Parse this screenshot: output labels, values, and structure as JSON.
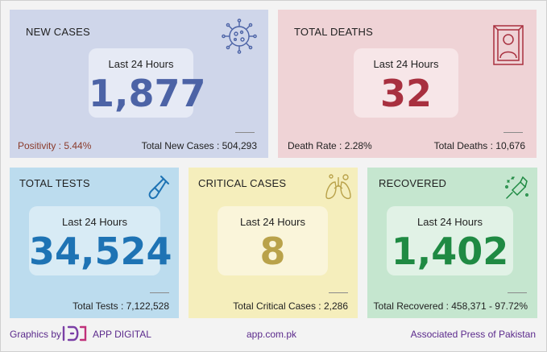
{
  "new_cases": {
    "title": "NEW CASES",
    "period_label": "Last 24 Hours",
    "value": "1,877",
    "left_stat": "Positivity : 5.44%",
    "right_stat": "Total New Cases : 504,293",
    "icon": "virus-icon",
    "color": "#4c63a6"
  },
  "total_deaths": {
    "title": "TOTAL DEATHS",
    "period_label": "Last 24 Hours",
    "value": "32",
    "left_stat": "Death Rate : 2.28%",
    "right_stat": "Total Deaths : 10,676",
    "icon": "memorial-portrait-icon",
    "color": "#a8303f"
  },
  "total_tests": {
    "title": "TOTAL TESTS",
    "period_label": "Last 24 Hours",
    "value": "34,524",
    "stat": "Total Tests : 7,122,528",
    "icon": "test-tube-icon",
    "color": "#1e73b4"
  },
  "critical_cases": {
    "title": "CRITICAL CASES",
    "period_label": "Last 24 Hours",
    "value": "8",
    "stat": "Total Critical Cases : 2,286",
    "icon": "lungs-icon",
    "color": "#b9a24a"
  },
  "recovered": {
    "title": "RECOVERED",
    "period_label": "Last 24 Hours",
    "value": "1,402",
    "stat": "Total Recovered : 458,371 - 97.72%",
    "icon": "sanitizer-icon",
    "color": "#1f8a43"
  },
  "footer": {
    "graphics_by": "Graphics by",
    "brand": "APP DIGITAL",
    "website": "app.com.pk",
    "publisher": "Associated Press of Pakistan",
    "text_color": "#5b2a8c"
  }
}
